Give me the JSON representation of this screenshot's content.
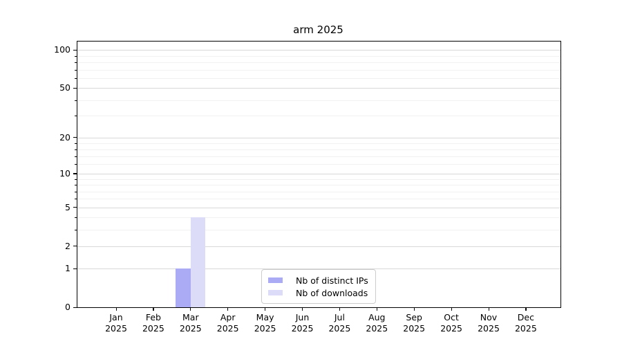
{
  "chart_data": {
    "type": "bar",
    "title": "arm 2025",
    "categories": [
      "Jan",
      "Feb",
      "Mar",
      "Apr",
      "May",
      "Jun",
      "Jul",
      "Aug",
      "Sep",
      "Oct",
      "Nov",
      "Dec"
    ],
    "x_year_label": "2025",
    "series": [
      {
        "name": "Nb of distinct IPs",
        "color": "#aaaaf5",
        "values": [
          0,
          0,
          1,
          0,
          0,
          0,
          0,
          0,
          0,
          0,
          0,
          0
        ]
      },
      {
        "name": "Nb of downloads",
        "color": "#dcdcf9",
        "values": [
          0,
          0,
          4,
          0,
          0,
          0,
          0,
          0,
          0,
          0,
          0,
          0
        ]
      }
    ],
    "yscale": "log1p",
    "ylim": [
      0,
      116.6
    ],
    "y_major_ticks": [
      0,
      1,
      2,
      5,
      10,
      20,
      50,
      100
    ],
    "y_minor_ticks": [
      3,
      4,
      6,
      7,
      8,
      9,
      12,
      14,
      16,
      18,
      30,
      40,
      60,
      70,
      80,
      90
    ],
    "xlabel": "",
    "ylabel": "",
    "grid": true,
    "legend_position": "lower center"
  },
  "style_colors": {
    "bar_distinct_ips": "#aaaaf5",
    "bar_downloads": "#dcdcf9",
    "major_grid": "#d8d8d8",
    "minor_grid": "#f1f1f1",
    "spine": "#000000",
    "background": "#ffffff",
    "legend_border": "#cccccc"
  }
}
